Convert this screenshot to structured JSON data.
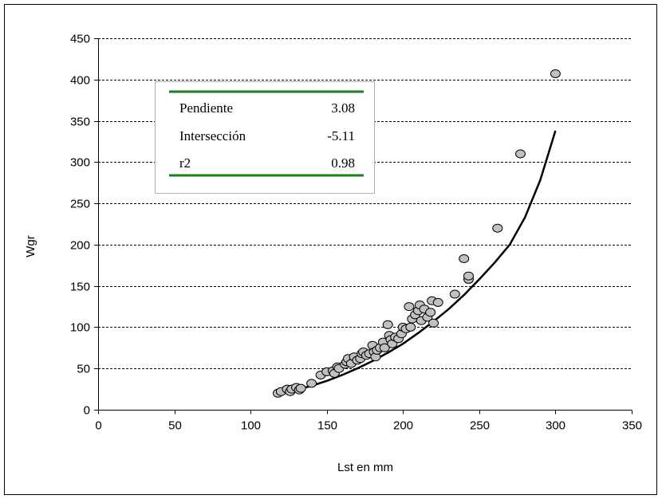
{
  "chart_data": {
    "type": "scatter",
    "title": "",
    "xlabel": "Lst en mm",
    "ylabel": "Wgr",
    "xlim": [
      0,
      350
    ],
    "ylim": [
      0,
      450
    ],
    "x_ticks": [
      0,
      50,
      100,
      150,
      200,
      250,
      300,
      350
    ],
    "y_ticks": [
      0,
      50,
      100,
      150,
      200,
      250,
      300,
      350,
      400,
      450
    ],
    "grid": "horizontal dashed",
    "colors": {
      "marker_fill": "#c0c0c0",
      "marker_edge": "#000000",
      "fit_line": "#000000",
      "stats_rule": "#1a7f1a"
    },
    "points": [
      [
        118,
        20
      ],
      [
        120,
        22
      ],
      [
        124,
        25
      ],
      [
        126,
        22
      ],
      [
        127,
        25
      ],
      [
        130,
        27
      ],
      [
        132,
        24
      ],
      [
        133,
        26
      ],
      [
        140,
        32
      ],
      [
        146,
        42
      ],
      [
        150,
        46
      ],
      [
        154,
        47
      ],
      [
        155,
        44
      ],
      [
        157,
        52
      ],
      [
        158,
        50
      ],
      [
        162,
        55
      ],
      [
        163,
        58
      ],
      [
        164,
        62
      ],
      [
        166,
        56
      ],
      [
        168,
        64
      ],
      [
        170,
        60
      ],
      [
        172,
        62
      ],
      [
        173,
        68
      ],
      [
        174,
        70
      ],
      [
        176,
        66
      ],
      [
        178,
        68
      ],
      [
        180,
        78
      ],
      [
        181,
        70
      ],
      [
        182,
        64
      ],
      [
        183,
        72
      ],
      [
        185,
        75
      ],
      [
        187,
        82
      ],
      [
        188,
        75
      ],
      [
        190,
        103
      ],
      [
        191,
        90
      ],
      [
        192,
        85
      ],
      [
        193,
        80
      ],
      [
        195,
        88
      ],
      [
        197,
        86
      ],
      [
        199,
        92
      ],
      [
        200,
        100
      ],
      [
        202,
        98
      ],
      [
        204,
        125
      ],
      [
        205,
        100
      ],
      [
        206,
        110
      ],
      [
        208,
        115
      ],
      [
        210,
        120
      ],
      [
        211,
        127
      ],
      [
        212,
        108
      ],
      [
        214,
        122
      ],
      [
        216,
        112
      ],
      [
        218,
        118
      ],
      [
        219,
        132
      ],
      [
        220,
        105
      ],
      [
        223,
        130
      ],
      [
        234,
        140
      ],
      [
        240,
        183
      ],
      [
        243,
        158
      ],
      [
        243,
        162
      ],
      [
        262,
        220
      ],
      [
        277,
        310
      ],
      [
        300,
        407
      ]
    ],
    "fit_line": {
      "x": [
        118,
        130,
        140,
        150,
        160,
        170,
        180,
        190,
        200,
        210,
        220,
        230,
        240,
        250,
        260,
        270,
        280,
        290,
        300
      ],
      "y": [
        18,
        24,
        29,
        35,
        42,
        50,
        59,
        69,
        80,
        93,
        107,
        122,
        139,
        158,
        178,
        200,
        233,
        278,
        338
      ]
    },
    "stats": {
      "rows": [
        {
          "label": "Pendiente",
          "value": "3.08"
        },
        {
          "label": "Intersección",
          "value": "-5.11"
        },
        {
          "label": "r2",
          "value": "0.98"
        }
      ]
    }
  }
}
